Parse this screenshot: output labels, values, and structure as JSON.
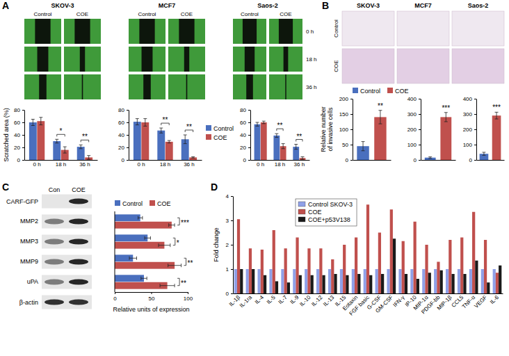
{
  "chart_data": [
    {
      "type": "bar",
      "categories": [
        "0 h",
        "18 h",
        "36 h"
      ],
      "ylabel": "Scratched area (%)",
      "ylim": [
        0,
        80
      ],
      "yticks": [
        0,
        20,
        40,
        60,
        80
      ],
      "series": [
        {
          "color": "#4a6fbe",
          "values": [
            60,
            30,
            21
          ],
          "errors": [
            5,
            3,
            3
          ]
        },
        {
          "color": "#c0504d",
          "values": [
            62,
            16,
            4
          ],
          "errors": [
            6,
            5,
            3
          ]
        }
      ],
      "annotations": [
        {
          "category": "18 h",
          "text": "*"
        },
        {
          "category": "36 h",
          "text": "**"
        }
      ]
    },
    {
      "type": "bar",
      "categories": [
        "0 h",
        "18 h",
        "36 h"
      ],
      "ylim": [
        0,
        80
      ],
      "yticks": [
        0,
        20,
        40,
        60,
        80
      ],
      "legend": "right",
      "series": [
        {
          "name": "Control",
          "color": "#4a6fbe",
          "values": [
            61,
            47,
            33
          ],
          "errors": [
            5,
            4,
            7
          ]
        },
        {
          "name": "COE",
          "color": "#c0504d",
          "values": [
            60,
            29,
            4
          ],
          "errors": [
            6,
            2,
            1
          ]
        }
      ],
      "annotations": [
        {
          "category": "18 h",
          "text": "**"
        },
        {
          "category": "36 h",
          "text": "**"
        }
      ]
    },
    {
      "type": "bar",
      "categories": [
        "0 h",
        "18 h",
        "36 h"
      ],
      "ylim": [
        0,
        80
      ],
      "yticks": [
        0,
        20,
        40,
        60,
        80
      ],
      "series": [
        {
          "color": "#4a6fbe",
          "values": [
            57,
            39,
            21
          ],
          "errors": [
            3,
            3,
            4
          ]
        },
        {
          "color": "#c0504d",
          "values": [
            60,
            22,
            3
          ],
          "errors": [
            2,
            4,
            2
          ]
        }
      ],
      "annotations": [
        {
          "category": "18 h",
          "text": "**"
        },
        {
          "category": "36 h",
          "text": "**"
        }
      ]
    },
    {
      "type": "bar",
      "categories": [
        null
      ],
      "ylabel": "Relative number of invasive cells",
      "ylim": [
        0,
        200
      ],
      "yticks": [
        0,
        50,
        100,
        150,
        200
      ],
      "tick_labels": "y",
      "legend": "top",
      "series": [
        {
          "name": "Control",
          "color": "#4a6fbe",
          "values": [
            45
          ],
          "errors": [
            15
          ]
        },
        {
          "name": "COE",
          "color": "#c0504d",
          "values": [
            140
          ],
          "errors": [
            22
          ]
        }
      ],
      "annotations": [
        {
          "text": "**"
        }
      ]
    },
    {
      "type": "bar",
      "categories": [
        null
      ],
      "ylim": [
        0,
        400
      ],
      "yticks": [
        0,
        100,
        200,
        300,
        400
      ],
      "tick_labels": "y",
      "series": [
        {
          "color": "#4a6fbe",
          "values": [
            15
          ],
          "errors": [
            5
          ]
        },
        {
          "color": "#c0504d",
          "values": [
            280
          ],
          "errors": [
            30
          ]
        }
      ],
      "annotations": [
        {
          "text": "***"
        }
      ]
    },
    {
      "type": "bar",
      "categories": [
        null
      ],
      "ylim": [
        0,
        400
      ],
      "yticks": [
        0,
        100,
        200,
        300,
        400
      ],
      "tick_labels": "y",
      "series": [
        {
          "color": "#4a6fbe",
          "values": [
            40
          ],
          "errors": [
            10
          ]
        },
        {
          "color": "#c0504d",
          "values": [
            290
          ],
          "errors": [
            22
          ]
        }
      ],
      "annotations": [
        {
          "text": "***"
        }
      ]
    },
    {
      "type": "bar",
      "orientation": "horizontal",
      "categories": [
        "MMP2",
        "MMP3",
        "MMP9",
        "uPA"
      ],
      "xlabel": "Relative units of expression",
      "xlim": [
        0,
        100
      ],
      "xticks": [
        0,
        50,
        100
      ],
      "legend": "top",
      "series": [
        {
          "name": "Control",
          "color": "#4a6fbe",
          "values": [
            35,
            45,
            25,
            40
          ],
          "errors": [
            3,
            4,
            5,
            4
          ]
        },
        {
          "name": "COE",
          "color": "#c0504d",
          "values": [
            78,
            68,
            82,
            72
          ],
          "errors": [
            4,
            8,
            9,
            10
          ]
        }
      ],
      "annotations": [
        {
          "category": "MMP2",
          "text": "***"
        },
        {
          "category": "MMP3",
          "text": "*"
        },
        {
          "category": "MMP9",
          "text": "**"
        },
        {
          "category": "uPA",
          "text": "**"
        }
      ]
    },
    {
      "type": "bar",
      "categories": [
        "IL-1β",
        "IL-1ra",
        "IL-4",
        "IL-5",
        "IL-7",
        "IL-9",
        "IL-10",
        "IL-12",
        "IL-13",
        "IL-15",
        "Eotaxin",
        "FGF basic",
        "G-CSF",
        "GM-CSF",
        "IFN-γ",
        "IP-10",
        "MIP-1α",
        "PDGF-bb",
        "MIP-1β",
        "CCL5",
        "TNF-α",
        "VEGF",
        "IL-6"
      ],
      "ylabel": "Fold change",
      "ylim": [
        0,
        4
      ],
      "yticks": [
        0,
        1,
        2,
        3,
        4
      ],
      "legend": "top-left",
      "series": [
        {
          "name": "Control SKOV-3",
          "color": "#8fa0e8",
          "values": [
            1,
            1,
            1,
            1,
            1,
            1,
            1,
            1,
            1,
            1,
            1,
            1,
            1,
            1,
            1,
            1,
            1,
            1,
            1,
            1,
            1,
            1,
            1
          ]
        },
        {
          "name": "COE",
          "color": "#c0504d",
          "values": [
            3.05,
            1.85,
            1.8,
            2.6,
            1.85,
            2.3,
            1.85,
            1.85,
            1.4,
            2.0,
            2.3,
            3.65,
            2.5,
            3.45,
            2.15,
            2.95,
            2.0,
            1.3,
            2.2,
            2.3,
            3.35,
            2.2,
            0.85
          ]
        },
        {
          "name": "COE+p53V138",
          "color": "#1a1a1a",
          "values": [
            1,
            1,
            0.75,
            0.5,
            0.45,
            0.75,
            0.75,
            0.75,
            0.8,
            0.75,
            0.8,
            0.75,
            0.8,
            2.25,
            0.8,
            0.6,
            0.85,
            0.95,
            0.8,
            0.8,
            1.35,
            0.45,
            1.15
          ]
        }
      ]
    }
  ],
  "figure": {
    "panel_labels": [
      "A",
      "B",
      "C",
      "D"
    ],
    "scratch_assay": {
      "cell_lines": [
        "SKOV-3",
        "MCF7",
        "Saos-2"
      ],
      "conditions": [
        "Control",
        "COE"
      ],
      "times": [
        "0 h",
        "18 h",
        "36 h"
      ]
    },
    "invasion_assay": {
      "cell_lines": [
        "SKOV-3",
        "MCF7",
        "Saos-2"
      ],
      "conditions": [
        "Control",
        "COE"
      ]
    },
    "western_blot": {
      "lanes": [
        "Con",
        "COE"
      ],
      "top_row": "CARF-GFP",
      "bottom_row": "β-actin"
    }
  }
}
